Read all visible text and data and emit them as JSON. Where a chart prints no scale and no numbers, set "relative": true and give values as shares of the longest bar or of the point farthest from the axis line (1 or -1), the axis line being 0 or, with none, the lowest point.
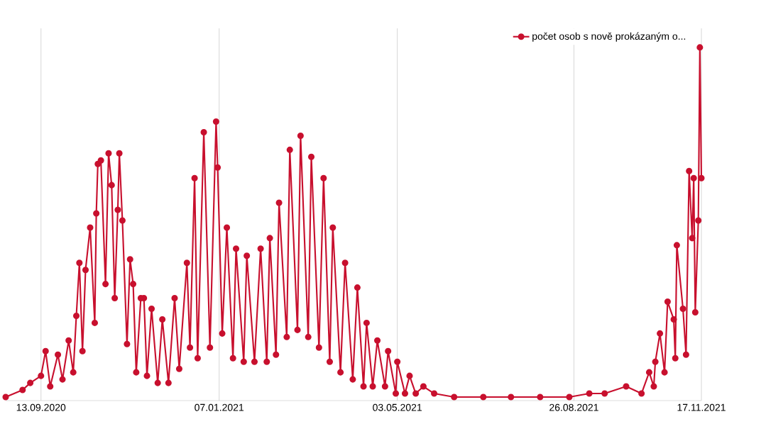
{
  "chart_data": {
    "type": "line",
    "relative": true,
    "marker": "circle",
    "line_style": "solid",
    "grid": true,
    "legend": "top right",
    "xlim": [
      "2020-08-21",
      "2021-11-17"
    ],
    "xticks": [
      {
        "value": "2020-09-13",
        "label": "13.09.2020"
      },
      {
        "value": "2021-01-07",
        "label": "07.01.2021"
      },
      {
        "value": "2021-05-03",
        "label": "03.05.2021"
      },
      {
        "value": "2021-08-26",
        "label": "26.08.2021"
      },
      {
        "value": "2021-11-17",
        "label": "17.11.2021"
      }
    ],
    "x": [
      "2020-08-21",
      "2020-09-01",
      "2020-09-06",
      "2020-09-13",
      "2020-09-16",
      "2020-09-19",
      "2020-09-24",
      "2020-09-27",
      "2020-10-01",
      "2020-10-04",
      "2020-10-06",
      "2020-10-08",
      "2020-10-10",
      "2020-10-12",
      "2020-10-15",
      "2020-10-18",
      "2020-10-19",
      "2020-10-20",
      "2020-10-22",
      "2020-10-25",
      "2020-10-27",
      "2020-10-29",
      "2020-10-31",
      "2020-11-02",
      "2020-11-03",
      "2020-11-05",
      "2020-11-08",
      "2020-11-10",
      "2020-11-12",
      "2020-11-14",
      "2020-11-17",
      "2020-11-19",
      "2020-11-21",
      "2020-11-24",
      "2020-11-28",
      "2020-12-01",
      "2020-12-05",
      "2020-12-09",
      "2020-12-12",
      "2020-12-17",
      "2020-12-19",
      "2020-12-22",
      "2020-12-24",
      "2020-12-28",
      "2021-01-01",
      "2021-01-05",
      "2021-01-06",
      "2021-01-09",
      "2021-01-12",
      "2021-01-16",
      "2021-01-18",
      "2021-01-23",
      "2021-01-25",
      "2021-01-30",
      "2021-02-03",
      "2021-02-07",
      "2021-02-09",
      "2021-02-13",
      "2021-02-15",
      "2021-02-20",
      "2021-02-22",
      "2021-02-27",
      "2021-03-01",
      "2021-03-06",
      "2021-03-08",
      "2021-03-13",
      "2021-03-16",
      "2021-03-20",
      "2021-03-22",
      "2021-03-27",
      "2021-03-30",
      "2021-04-04",
      "2021-04-07",
      "2021-04-11",
      "2021-04-13",
      "2021-04-17",
      "2021-04-20",
      "2021-04-25",
      "2021-04-27",
      "2021-05-02",
      "2021-05-03",
      "2021-05-08",
      "2021-05-11",
      "2021-05-15",
      "2021-05-20",
      "2021-05-27",
      "2021-06-09",
      "2021-06-28",
      "2021-07-16",
      "2021-08-04",
      "2021-08-23",
      "2021-09-05",
      "2021-09-15",
      "2021-09-29",
      "2021-10-09",
      "2021-10-14",
      "2021-10-17",
      "2021-10-18",
      "2021-10-21",
      "2021-10-24",
      "2021-10-26",
      "2021-10-30",
      "2021-10-31",
      "2021-11-01",
      "2021-11-05",
      "2021-11-07",
      "2021-11-09",
      "2021-11-11",
      "2021-11-12",
      "2021-11-13",
      "2021-11-15",
      "2021-11-16",
      "2021-11-17"
    ],
    "series": [
      {
        "name": "počet osob s nově prokázaným o...",
        "color": "#c8102e",
        "values": [
          0.01,
          0.03,
          0.05,
          0.07,
          0.14,
          0.04,
          0.13,
          0.06,
          0.17,
          0.08,
          0.24,
          0.39,
          0.14,
          0.37,
          0.49,
          0.22,
          0.53,
          0.67,
          0.68,
          0.33,
          0.7,
          0.61,
          0.29,
          0.54,
          0.7,
          0.51,
          0.16,
          0.4,
          0.33,
          0.08,
          0.29,
          0.29,
          0.07,
          0.26,
          0.05,
          0.23,
          0.05,
          0.29,
          0.09,
          0.39,
          0.15,
          0.63,
          0.12,
          0.76,
          0.15,
          0.79,
          0.66,
          0.19,
          0.49,
          0.12,
          0.43,
          0.11,
          0.41,
          0.11,
          0.43,
          0.11,
          0.46,
          0.13,
          0.56,
          0.18,
          0.71,
          0.2,
          0.75,
          0.18,
          0.69,
          0.15,
          0.63,
          0.11,
          0.49,
          0.08,
          0.39,
          0.06,
          0.32,
          0.04,
          0.22,
          0.04,
          0.17,
          0.04,
          0.14,
          0.02,
          0.11,
          0.02,
          0.07,
          0.02,
          0.04,
          0.02,
          0.01,
          0.01,
          0.01,
          0.01,
          0.01,
          0.02,
          0.02,
          0.04,
          0.02,
          0.08,
          0.04,
          0.11,
          0.19,
          0.08,
          0.28,
          0.23,
          0.12,
          0.44,
          0.26,
          0.13,
          0.65,
          0.46,
          0.63,
          0.25,
          0.51,
          1,
          0.63
        ]
      }
    ]
  }
}
